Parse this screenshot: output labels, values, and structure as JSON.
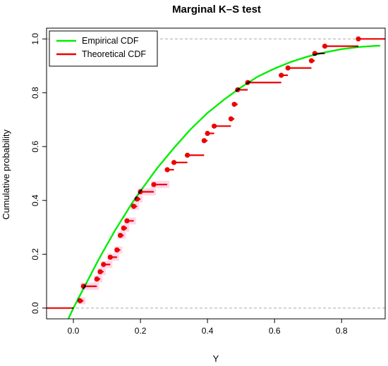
{
  "chart_data": {
    "type": "line",
    "title": "Marginal K–S test",
    "xlabel": "Y",
    "ylabel": "Cumulative probability",
    "xlim": [
      -0.08,
      0.93
    ],
    "ylim": [
      -0.04,
      1.04
    ],
    "x_ticks": [
      0.0,
      0.2,
      0.4,
      0.6,
      0.8
    ],
    "x_tick_labels": [
      "0.0",
      "0.2",
      "0.4",
      "0.6",
      "0.8"
    ],
    "y_ticks": [
      0.0,
      0.2,
      0.4,
      0.6,
      0.8,
      1.0
    ],
    "y_tick_labels": [
      "0.0",
      "0.2",
      "0.4",
      "0.6",
      "0.8",
      "1.0"
    ],
    "reference_lines_y": [
      0.0,
      1.0
    ],
    "legend": {
      "position": "top-left",
      "entries": [
        {
          "label": "Empirical CDF",
          "color": "#00ee00"
        },
        {
          "label": "Theoretical CDF",
          "color": "#ee0000"
        }
      ]
    },
    "series": [
      {
        "name": "Empirical CDF",
        "kind": "curve",
        "color": "#00ee00",
        "x": [
          -0.015,
          0.0,
          0.025,
          0.05,
          0.075,
          0.1,
          0.125,
          0.15,
          0.175,
          0.2,
          0.25,
          0.3,
          0.35,
          0.4,
          0.45,
          0.5,
          0.55,
          0.6,
          0.65,
          0.7,
          0.75,
          0.8,
          0.85,
          0.9,
          0.915
        ],
        "y": [
          -0.04,
          0.0,
          0.06,
          0.12,
          0.18,
          0.235,
          0.29,
          0.34,
          0.39,
          0.435,
          0.52,
          0.595,
          0.665,
          0.725,
          0.775,
          0.82,
          0.86,
          0.89,
          0.915,
          0.935,
          0.95,
          0.962,
          0.97,
          0.974,
          0.975
        ]
      },
      {
        "name": "Theoretical CDF",
        "kind": "step",
        "color": "#ee0000",
        "x": [
          -0.08,
          0.02,
          0.03,
          0.07,
          0.08,
          0.09,
          0.11,
          0.13,
          0.14,
          0.15,
          0.16,
          0.18,
          0.19,
          0.2,
          0.24,
          0.28,
          0.3,
          0.34,
          0.39,
          0.4,
          0.42,
          0.47,
          0.48,
          0.49,
          0.52,
          0.62,
          0.64,
          0.71,
          0.72,
          0.75,
          0.85
        ],
        "y": [
          0.0,
          0.027,
          0.081,
          0.108,
          0.135,
          0.162,
          0.189,
          0.216,
          0.27,
          0.297,
          0.324,
          0.378,
          0.405,
          0.432,
          0.459,
          0.514,
          0.541,
          0.568,
          0.622,
          0.649,
          0.676,
          0.703,
          0.757,
          0.811,
          0.838,
          0.865,
          0.892,
          0.919,
          0.946,
          0.973,
          1.0
        ],
        "x_end": [
          0.0,
          0.03,
          0.07,
          0.08,
          0.09,
          0.11,
          0.13,
          0.14,
          0.15,
          0.16,
          0.18,
          0.19,
          0.2,
          0.24,
          0.28,
          0.3,
          0.34,
          0.39,
          0.4,
          0.42,
          0.47,
          0.48,
          0.49,
          0.52,
          0.62,
          0.64,
          0.71,
          0.72,
          0.75,
          0.85,
          0.93
        ]
      }
    ]
  },
  "colors": {
    "empirical": "#00ee00",
    "theoretical": "#ee0000",
    "reference": "#aaaaaa",
    "highlight": "#ffd6ea"
  }
}
